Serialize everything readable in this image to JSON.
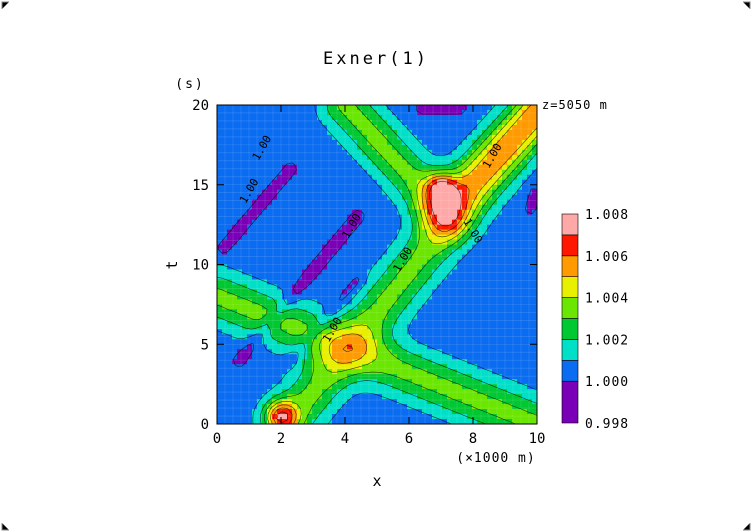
{
  "chart_data": {
    "type": "heatmap",
    "title": "Exner(1)",
    "xlabel": "x",
    "ylabel": "t",
    "y_unit": "(s)",
    "x_unit": "(×1000 m)",
    "annotation": "z=5050 m",
    "xlim": [
      0,
      10
    ],
    "ylim": [
      0,
      20
    ],
    "x_ticks": [
      0,
      2,
      4,
      6,
      8,
      10
    ],
    "y_ticks": [
      0,
      5,
      10,
      15,
      20
    ],
    "contour_label": "1.00",
    "colorbar": {
      "levels": [
        0.998,
        1.0,
        1.002,
        1.004,
        1.006,
        1.008
      ],
      "tick_labels": [
        "0.998",
        "1.000",
        "1.002",
        "1.004",
        "1.006",
        "1.008"
      ],
      "bins": [
        {
          "min": 0.998,
          "max": 1.0,
          "color": "#7a00b8"
        },
        {
          "min": 1.0,
          "max": 1.001,
          "color": "#0a6cf0"
        },
        {
          "min": 1.001,
          "max": 1.002,
          "color": "#00e0c8"
        },
        {
          "min": 1.002,
          "max": 1.003,
          "color": "#00c832"
        },
        {
          "min": 1.003,
          "max": 1.004,
          "color": "#6ae600"
        },
        {
          "min": 1.004,
          "max": 1.005,
          "color": "#e8f000"
        },
        {
          "min": 1.005,
          "max": 1.006,
          "color": "#ff9a00"
        },
        {
          "min": 1.006,
          "max": 1.007,
          "color": "#ff1800"
        },
        {
          "min": 1.007,
          "max": 1.008,
          "color": "#ffa8a8"
        }
      ]
    },
    "features": {
      "background_value": 1.0005,
      "wave_bands": [
        {
          "from": [
            0,
            8
          ],
          "to": [
            10,
            0
          ],
          "amplitude": 0.0028,
          "width": 0.9
        },
        {
          "from": [
            2.2,
            0
          ],
          "to": [
            10,
            19.5
          ],
          "amplitude": 0.0028,
          "width": 0.9
        },
        {
          "from": [
            4,
            20
          ],
          "to": [
            7.2,
            13
          ],
          "amplitude": 0.0028,
          "width": 0.85
        },
        {
          "from": [
            7,
            13.5
          ],
          "to": [
            10,
            19.5
          ],
          "amplitude": 0.0026,
          "width": 0.85
        }
      ],
      "peaks": [
        {
          "x": 2.0,
          "t": 0.5,
          "value": 1.0078
        },
        {
          "x": 7.0,
          "t": 14.8,
          "value": 1.0072
        }
      ],
      "troughs": [
        {
          "from": [
            0.7,
            4
          ],
          "to": [
            4.4,
            13
          ],
          "value": 0.9994
        },
        {
          "from": [
            2.3,
            4
          ],
          "to": [
            4.4,
            9
          ],
          "value": 0.9995
        },
        {
          "from": [
            0.2,
            11
          ],
          "to": [
            2.3,
            16
          ],
          "value": 0.9995
        },
        {
          "from": [
            6.4,
            19.8
          ],
          "to": [
            7.6,
            19.8
          ],
          "value": 0.9995
        },
        {
          "from": [
            9.8,
            13.5
          ],
          "to": [
            9.9,
            14.5
          ],
          "value": 0.9996
        }
      ]
    }
  }
}
